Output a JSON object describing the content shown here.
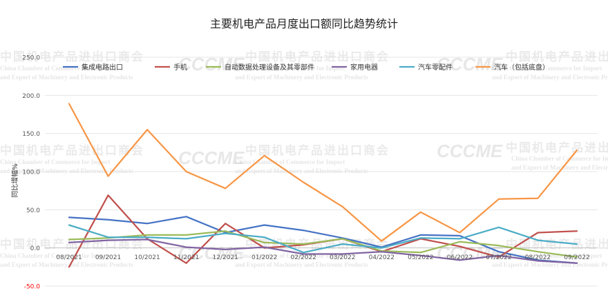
{
  "watermark": {
    "org_cn": "中国机电产品进出口商会",
    "org_en_line1": "China Chamber of Commerce for Import",
    "org_en_line2": "and Export of Machinery and Electronic Products",
    "logo_text": "CCCME"
  },
  "chart_data": {
    "type": "line",
    "title": "主要机电产品月度出口额同比趋势统计",
    "xlabel": "",
    "ylabel": "同比增幅%",
    "ylim": [
      -50,
      250
    ],
    "yticks": [
      "250.0",
      "200.0",
      "150.0",
      "100.0",
      "50.0",
      "0.0",
      "-50.0"
    ],
    "ytick_values": [
      250,
      200,
      150,
      100,
      50,
      0,
      -50
    ],
    "grid": true,
    "legend_position": "top",
    "categories": [
      "08/2021",
      "09/2021",
      "10/2021",
      "11/2021",
      "12/2021",
      "01/2022",
      "02/2022",
      "03/2022",
      "04/2022",
      "05/2022",
      "06/2022",
      "07/2022",
      "08/2022",
      "09/2022"
    ],
    "series": [
      {
        "name": "集成电路出口",
        "color": "#4472C4",
        "values": [
          40,
          37,
          32,
          41,
          20,
          30,
          23,
          13,
          1,
          17,
          16,
          -5,
          -16,
          -20
        ]
      },
      {
        "name": "手机",
        "color": "#C0504D",
        "values": [
          -25,
          69,
          12,
          -20,
          32,
          0,
          4,
          12,
          -5,
          12,
          2,
          -12,
          20,
          22
        ]
      },
      {
        "name": "自动数据处理设备及其零部件",
        "color": "#9BBB59",
        "values": [
          11,
          13,
          17,
          17,
          22,
          7,
          5,
          12,
          -4,
          -6,
          8,
          3,
          -5,
          -12
        ]
      },
      {
        "name": "家用电器",
        "color": "#8064A2",
        "values": [
          7,
          10,
          11,
          1,
          -2,
          1,
          -8,
          -8,
          -5,
          -10,
          -16,
          -10,
          -17,
          -20
        ]
      },
      {
        "name": "汽车零配件",
        "color": "#4BACC6",
        "values": [
          30,
          14,
          14,
          12,
          19,
          14,
          -6,
          5,
          0,
          13,
          12,
          27,
          10,
          5
        ]
      },
      {
        "name": "汽车（包括底盘）",
        "color": "#F79646",
        "values": [
          189,
          94,
          155,
          100,
          78,
          121,
          86,
          54,
          9,
          47,
          20,
          64,
          65,
          128
        ]
      }
    ]
  }
}
